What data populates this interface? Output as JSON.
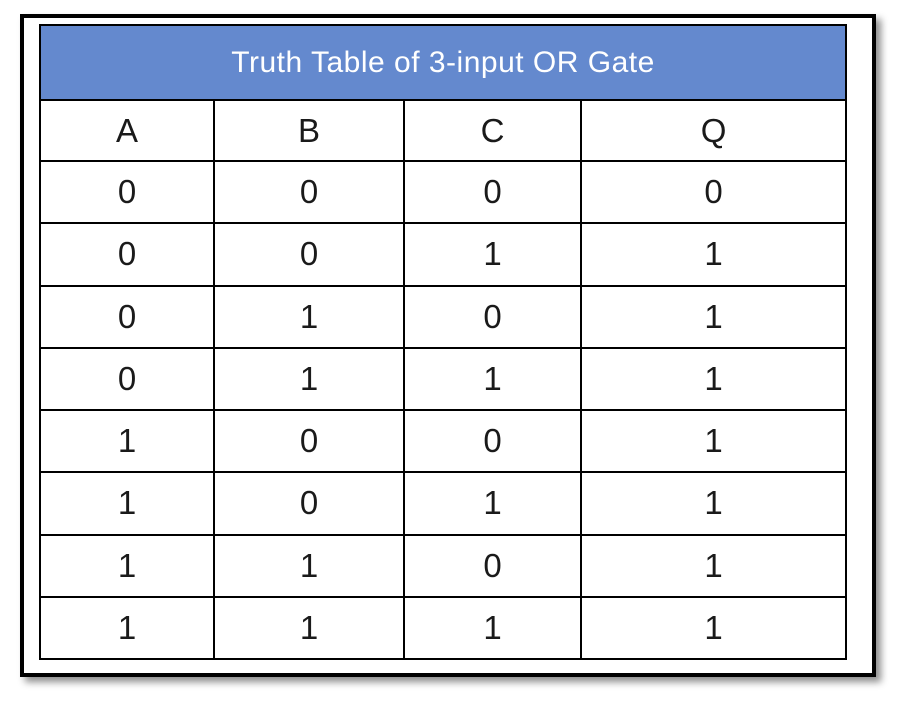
{
  "figure": {
    "colors": {
      "page_bg": "#FFFFFF",
      "frame_border": "#000000",
      "border": "#000000",
      "title_bg": "#6489CE",
      "title_text": "#FFFFFF",
      "cell_text": "#1A1A1A"
    }
  },
  "chart_data": {
    "type": "table",
    "title": "Truth Table of 3-input OR Gate",
    "columns": [
      "A",
      "B",
      "C",
      "Q"
    ],
    "rows": [
      [
        "0",
        "0",
        "0",
        "0"
      ],
      [
        "0",
        "0",
        "1",
        "1"
      ],
      [
        "0",
        "1",
        "0",
        "1"
      ],
      [
        "0",
        "1",
        "1",
        "1"
      ],
      [
        "1",
        "0",
        "0",
        "1"
      ],
      [
        "1",
        "0",
        "1",
        "1"
      ],
      [
        "1",
        "1",
        "0",
        "1"
      ],
      [
        "1",
        "1",
        "1",
        "1"
      ]
    ],
    "layout": {
      "legend": "none",
      "grid": "all-cell-borders",
      "title_position": "top-banner"
    }
  }
}
